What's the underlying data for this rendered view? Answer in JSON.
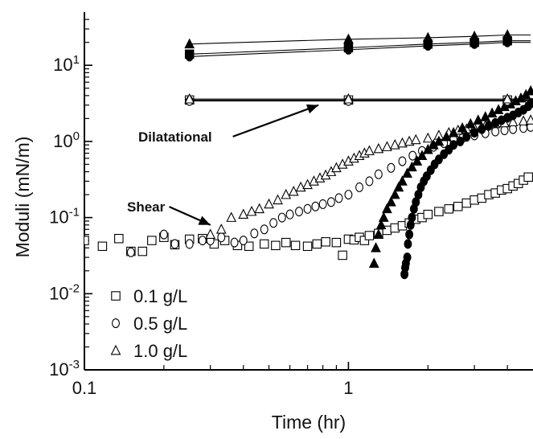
{
  "chart_data": {
    "type": "scatter",
    "title": "",
    "xlabel": "Time (hr)",
    "ylabel": "Moduli (mN/m)",
    "x_scale": "log",
    "y_scale": "log",
    "xlim": [
      0.1,
      5
    ],
    "ylim": [
      0.001,
      50
    ],
    "x_ticks": [
      {
        "value": 0.1,
        "label": "0.1"
      },
      {
        "value": 1,
        "label": "1"
      }
    ],
    "y_ticks": [
      {
        "value": 0.001,
        "base": "10",
        "exp": "-3"
      },
      {
        "value": 0.01,
        "base": "10",
        "exp": "-2"
      },
      {
        "value": 0.1,
        "base": "10",
        "exp": "-1"
      },
      {
        "value": 1,
        "base": "10",
        "exp": "0"
      },
      {
        "value": 10,
        "base": "10",
        "exp": "1"
      }
    ],
    "grid": false,
    "legend_position": "bottom-left",
    "legend": [
      {
        "marker": "square",
        "label": "0.1 g/L"
      },
      {
        "marker": "circle",
        "label": "0.5 g/L"
      },
      {
        "marker": "triangle",
        "label": "1.0 g/L"
      }
    ],
    "annotations": [
      {
        "text": "Dilatational",
        "x": 0.16,
        "y": 1.0,
        "arrow_to": [
          0.77,
          3.0
        ]
      },
      {
        "text": "Shear",
        "x": 0.145,
        "y": 0.12,
        "arrow_to": [
          0.3,
          0.08
        ]
      }
    ],
    "series": [
      {
        "marker": "square",
        "filled": false,
        "group": "Shear",
        "x": [
          0.1,
          0.117,
          0.135,
          0.15,
          0.166,
          0.18,
          0.2,
          0.22,
          0.25,
          0.28,
          0.31,
          0.34,
          0.38,
          0.42,
          0.48,
          0.53,
          0.58,
          0.63,
          0.7,
          0.76,
          0.82,
          0.9,
          0.95,
          1.0,
          1.05,
          1.1,
          1.15,
          1.2,
          1.3,
          1.4,
          1.5,
          1.6,
          1.7,
          1.8,
          1.9,
          2.0,
          2.2,
          2.4,
          2.6,
          2.8,
          3.0,
          3.2,
          3.4,
          3.6,
          3.8,
          4.0,
          4.2,
          4.4,
          4.6,
          4.8
        ],
        "y": [
          0.05,
          0.042,
          0.053,
          0.036,
          0.036,
          0.05,
          0.055,
          0.044,
          0.052,
          0.053,
          0.045,
          0.05,
          0.043,
          0.042,
          0.045,
          0.043,
          0.047,
          0.043,
          0.042,
          0.045,
          0.048,
          0.047,
          0.032,
          0.052,
          0.051,
          0.055,
          0.05,
          0.058,
          0.062,
          0.068,
          0.073,
          0.078,
          0.085,
          0.095,
          0.1,
          0.11,
          0.12,
          0.13,
          0.14,
          0.155,
          0.17,
          0.18,
          0.2,
          0.21,
          0.23,
          0.24,
          0.26,
          0.28,
          0.31,
          0.34
        ]
      },
      {
        "marker": "circle",
        "filled": false,
        "group": "Shear",
        "x": [
          0.15,
          0.2,
          0.22,
          0.25,
          0.28,
          0.3,
          0.33,
          0.37,
          0.4,
          0.44,
          0.48,
          0.52,
          0.56,
          0.6,
          0.65,
          0.7,
          0.75,
          0.8,
          0.86,
          0.92,
          1.0,
          1.1,
          1.2,
          1.3,
          1.45,
          1.6,
          1.75,
          1.9,
          2.1,
          2.3,
          2.5,
          2.7,
          3.0,
          3.3,
          3.6,
          3.9,
          4.2,
          4.6,
          4.9
        ],
        "y": [
          0.035,
          0.06,
          0.045,
          0.045,
          0.05,
          0.05,
          0.055,
          0.047,
          0.05,
          0.062,
          0.07,
          0.085,
          0.1,
          0.11,
          0.12,
          0.13,
          0.14,
          0.15,
          0.16,
          0.18,
          0.2,
          0.25,
          0.3,
          0.37,
          0.45,
          0.55,
          0.65,
          0.75,
          0.85,
          0.95,
          1.05,
          1.1,
          1.2,
          1.28,
          1.35,
          1.4,
          1.45,
          1.5,
          1.55
        ]
      },
      {
        "marker": "triangle",
        "filled": false,
        "group": "Shear",
        "x": [
          0.3,
          0.33,
          0.36,
          0.4,
          0.43,
          0.46,
          0.5,
          0.54,
          0.58,
          0.62,
          0.66,
          0.7,
          0.74,
          0.78,
          0.82,
          0.86,
          0.9,
          0.95,
          1.0,
          1.05,
          1.1,
          1.15,
          1.2,
          1.3,
          1.4,
          1.5,
          1.6,
          1.7,
          1.8,
          2.0,
          2.2,
          2.4,
          2.6,
          2.8,
          3.0,
          3.3,
          3.6,
          3.9,
          4.2,
          4.6,
          4.9
        ],
        "y": [
          0.06,
          0.07,
          0.1,
          0.11,
          0.12,
          0.13,
          0.15,
          0.17,
          0.2,
          0.22,
          0.25,
          0.27,
          0.3,
          0.33,
          0.36,
          0.4,
          0.45,
          0.5,
          0.55,
          0.6,
          0.65,
          0.7,
          0.75,
          0.8,
          0.85,
          0.9,
          0.95,
          1.0,
          1.05,
          1.1,
          1.2,
          1.3,
          1.4,
          1.45,
          1.5,
          1.6,
          1.7,
          1.75,
          1.8,
          1.85,
          1.9
        ]
      },
      {
        "marker": "circle",
        "filled": true,
        "group": "Shear",
        "x": [
          1.63,
          1.64,
          1.65,
          1.67,
          1.68,
          1.7,
          1.72,
          1.74,
          1.77,
          1.8,
          1.84,
          1.88,
          1.93,
          1.98,
          2.05,
          2.12,
          2.2,
          2.3,
          2.4,
          2.5,
          2.65,
          2.8,
          3.0,
          3.2,
          3.4,
          3.6,
          3.8,
          4.0,
          4.2,
          4.4,
          4.6,
          4.8,
          4.95
        ],
        "y": [
          0.018,
          0.022,
          0.025,
          0.03,
          0.045,
          0.06,
          0.08,
          0.1,
          0.13,
          0.16,
          0.2,
          0.25,
          0.3,
          0.35,
          0.42,
          0.5,
          0.58,
          0.68,
          0.78,
          0.9,
          1.0,
          1.15,
          1.3,
          1.45,
          1.6,
          1.75,
          1.9,
          2.05,
          2.2,
          2.4,
          2.6,
          2.9,
          3.2
        ]
      },
      {
        "marker": "triangle",
        "filled": true,
        "group": "Shear",
        "x": [
          1.25,
          1.27,
          1.3,
          1.33,
          1.36,
          1.4,
          1.45,
          1.5,
          1.55,
          1.6,
          1.67,
          1.74,
          1.82,
          1.9,
          2.0,
          2.1,
          2.2,
          2.35,
          2.5,
          2.7,
          2.9,
          3.1,
          3.3,
          3.5,
          3.7,
          3.9,
          4.1,
          4.3,
          4.5,
          4.7,
          4.9
        ],
        "y": [
          0.025,
          0.04,
          0.06,
          0.08,
          0.1,
          0.13,
          0.16,
          0.2,
          0.25,
          0.3,
          0.38,
          0.46,
          0.55,
          0.65,
          0.78,
          0.9,
          1.0,
          1.15,
          1.3,
          1.5,
          1.7,
          1.9,
          2.1,
          2.35,
          2.6,
          2.85,
          3.1,
          3.4,
          3.7,
          4.1,
          4.6
        ]
      },
      {
        "marker": "triangle",
        "filled": true,
        "group": "Dilatational",
        "line": true,
        "x": [
          0.25,
          1.0,
          2.0,
          3.0,
          4.0
        ],
        "y": [
          19,
          22,
          23,
          24,
          25
        ]
      },
      {
        "marker": "square",
        "filled": true,
        "group": "Dilatational",
        "line": true,
        "x": [
          0.25,
          1.0,
          2.0,
          3.0,
          4.0
        ],
        "y": [
          14,
          17,
          19,
          20,
          21
        ]
      },
      {
        "marker": "circle",
        "filled": true,
        "group": "Dilatational",
        "line": true,
        "x": [
          0.25,
          1.0,
          2.0,
          3.0,
          4.0
        ],
        "y": [
          13,
          16,
          18,
          19,
          20
        ]
      },
      {
        "marker": "square",
        "filled": false,
        "group": "Dilatational",
        "line": true,
        "x": [
          0.25,
          1.0,
          4.0
        ],
        "y": [
          3.5,
          3.5,
          3.5
        ]
      },
      {
        "marker": "circle",
        "filled": false,
        "group": "Dilatational",
        "line": true,
        "x": [
          0.25,
          1.0,
          4.0
        ],
        "y": [
          3.4,
          3.4,
          3.4
        ]
      },
      {
        "marker": "triangle",
        "filled": false,
        "group": "Dilatational",
        "line": true,
        "x": [
          0.25,
          1.0,
          4.0
        ],
        "y": [
          3.6,
          3.6,
          3.6
        ]
      }
    ]
  }
}
